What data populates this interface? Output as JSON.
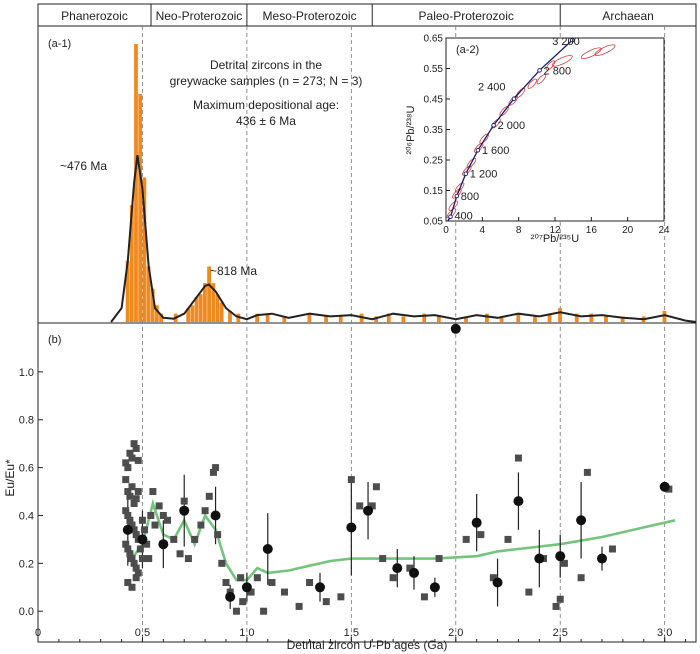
{
  "eons": [
    {
      "label": "Phanerozoic",
      "from": 0.0,
      "to": 0.541
    },
    {
      "label": "Neo-Proterozoic",
      "from": 0.541,
      "to": 1.0
    },
    {
      "label": "Meso-Proterozoic",
      "from": 1.0,
      "to": 1.6
    },
    {
      "label": "Paleo-Proterozoic",
      "from": 1.6,
      "to": 2.5
    },
    {
      "label": "Archaean",
      "from": 2.5,
      "to": 3.15
    }
  ],
  "boundaries_ga": [
    0.5,
    1.0,
    1.5,
    2.0,
    2.5,
    3.0
  ],
  "panel_a1": {
    "label": "(a-1)",
    "caption_line1": "Detrital zircons in the",
    "caption_line2": "greywacke samples (n = 273;  N = 3)",
    "caption_line3": "Maximum depositional age:",
    "caption_line4": "436 ± 6 Ma",
    "peak1_label": "~476 Ma",
    "peak2_label": "~818 Ma"
  },
  "panel_a2": {
    "label": "(a-2)",
    "xlabel": "²⁰⁷Pb/²³⁵U",
    "ylabel": "²⁰⁶Pb/²³⁸U",
    "concordia_labels": [
      "400",
      "800",
      "1 200",
      "1 600",
      "2 000",
      "2 400",
      "2 800",
      "3 200"
    ]
  },
  "panel_b": {
    "label": "(b)",
    "ylabel": "Eu/Eu*",
    "xlabel": "Detrital zircon U-Pb ages (Ga)"
  },
  "chart_data": [
    {
      "type": "bar",
      "name": "age histogram with probability density curve",
      "xlim": [
        0,
        3.15
      ],
      "bin_width": 0.02,
      "bars": [
        [
          0.43,
          0.22
        ],
        [
          0.45,
          0.42
        ],
        [
          0.47,
          1.0
        ],
        [
          0.49,
          0.82
        ],
        [
          0.51,
          0.52
        ],
        [
          0.53,
          0.2
        ],
        [
          0.55,
          0.12
        ],
        [
          0.57,
          0.06
        ],
        [
          0.59,
          0.03
        ],
        [
          0.66,
          0.03
        ],
        [
          0.72,
          0.05
        ],
        [
          0.74,
          0.06
        ],
        [
          0.76,
          0.09
        ],
        [
          0.78,
          0.1
        ],
        [
          0.8,
          0.14
        ],
        [
          0.82,
          0.2
        ],
        [
          0.84,
          0.14
        ],
        [
          0.86,
          0.1
        ],
        [
          0.88,
          0.07
        ],
        [
          0.92,
          0.04
        ],
        [
          0.96,
          0.03
        ],
        [
          1.05,
          0.03
        ],
        [
          1.1,
          0.03
        ],
        [
          1.18,
          0.02
        ],
        [
          1.3,
          0.03
        ],
        [
          1.38,
          0.02
        ],
        [
          1.45,
          0.02
        ],
        [
          1.55,
          0.03
        ],
        [
          1.62,
          0.02
        ],
        [
          1.68,
          0.03
        ],
        [
          1.75,
          0.02
        ],
        [
          1.85,
          0.03
        ],
        [
          1.92,
          0.02
        ],
        [
          2.05,
          0.02
        ],
        [
          2.15,
          0.03
        ],
        [
          2.22,
          0.02
        ],
        [
          2.3,
          0.03
        ],
        [
          2.38,
          0.02
        ],
        [
          2.45,
          0.03
        ],
        [
          2.5,
          0.05
        ],
        [
          2.58,
          0.03
        ],
        [
          2.65,
          0.03
        ],
        [
          2.72,
          0.02
        ],
        [
          2.8,
          0.02
        ],
        [
          2.9,
          0.02
        ],
        [
          3.0,
          0.04
        ]
      ],
      "pdf_curve": [
        [
          0.35,
          0.0
        ],
        [
          0.4,
          0.05
        ],
        [
          0.43,
          0.22
        ],
        [
          0.46,
          0.5
        ],
        [
          0.476,
          0.6
        ],
        [
          0.5,
          0.48
        ],
        [
          0.53,
          0.2
        ],
        [
          0.56,
          0.05
        ],
        [
          0.6,
          0.015
        ],
        [
          0.65,
          0.012
        ],
        [
          0.7,
          0.03
        ],
        [
          0.75,
          0.08
        ],
        [
          0.8,
          0.13
        ],
        [
          0.818,
          0.135
        ],
        [
          0.85,
          0.11
        ],
        [
          0.9,
          0.05
        ],
        [
          0.95,
          0.02
        ],
        [
          1.0,
          0.01
        ],
        [
          1.05,
          0.025
        ],
        [
          1.12,
          0.03
        ],
        [
          1.2,
          0.015
        ],
        [
          1.3,
          0.03
        ],
        [
          1.4,
          0.02
        ],
        [
          1.5,
          0.025
        ],
        [
          1.6,
          0.01
        ],
        [
          1.7,
          0.03
        ],
        [
          1.8,
          0.02
        ],
        [
          1.9,
          0.025
        ],
        [
          2.0,
          0.01
        ],
        [
          2.1,
          0.025
        ],
        [
          2.2,
          0.015
        ],
        [
          2.3,
          0.03
        ],
        [
          2.4,
          0.02
        ],
        [
          2.5,
          0.035
        ],
        [
          2.6,
          0.02
        ],
        [
          2.7,
          0.025
        ],
        [
          2.8,
          0.015
        ],
        [
          2.9,
          0.01
        ],
        [
          3.0,
          0.025
        ],
        [
          3.1,
          0.005
        ],
        [
          3.15,
          0.0
        ]
      ]
    },
    {
      "type": "line",
      "name": "concordia diagram",
      "xlim": [
        0,
        24
      ],
      "ylim": [
        0.05,
        0.65
      ],
      "xticks": [
        0,
        4,
        8,
        12,
        16,
        20,
        24
      ],
      "yticks": [
        0.05,
        0.15,
        0.25,
        0.35,
        0.45,
        0.55,
        0.65
      ],
      "concordia_ages_ma": [
        400,
        800,
        1200,
        1600,
        2000,
        2400,
        2800,
        3200
      ],
      "concordia_points": [
        [
          0.49,
          0.064
        ],
        [
          1.19,
          0.132
        ],
        [
          2.18,
          0.205
        ],
        [
          3.51,
          0.282
        ],
        [
          5.24,
          0.364
        ],
        [
          7.48,
          0.451
        ],
        [
          10.3,
          0.544
        ],
        [
          13.9,
          0.643
        ]
      ],
      "ellipses": [
        [
          0.6,
          0.075
        ],
        [
          0.8,
          0.1
        ],
        [
          1.2,
          0.14
        ],
        [
          1.5,
          0.16
        ],
        [
          2.3,
          0.215
        ],
        [
          2.8,
          0.24
        ],
        [
          3.6,
          0.29
        ],
        [
          4.2,
          0.32
        ],
        [
          5.5,
          0.37
        ],
        [
          6.4,
          0.41
        ],
        [
          7.4,
          0.445
        ],
        [
          8.2,
          0.47
        ],
        [
          9.5,
          0.5
        ],
        [
          10.5,
          0.515
        ],
        [
          11.5,
          0.56
        ],
        [
          12.8,
          0.575
        ],
        [
          16.0,
          0.6
        ],
        [
          17.5,
          0.61
        ]
      ]
    },
    {
      "type": "scatter",
      "name": "Eu/Eu* versus age",
      "xlim": [
        0,
        3.15
      ],
      "ylim": [
        -0.02,
        1.2
      ],
      "xticks": [
        0,
        0.5,
        1.0,
        1.5,
        2.0,
        2.5,
        3.0
      ],
      "xtick_labels": [
        "0",
        "0.5",
        "1.0",
        "1.5",
        "2.0",
        "2.5",
        "3.0"
      ],
      "yticks": [
        0.0,
        0.2,
        0.4,
        0.6,
        0.8,
        1.0
      ],
      "ytick_labels": [
        "0.0",
        "0.2",
        "0.4",
        "0.6",
        "0.8",
        "1.0"
      ],
      "squares": [
        [
          0.42,
          0.62
        ],
        [
          0.43,
          0.6
        ],
        [
          0.44,
          0.66
        ],
        [
          0.45,
          0.64
        ],
        [
          0.46,
          0.7
        ],
        [
          0.47,
          0.68
        ],
        [
          0.48,
          0.63
        ],
        [
          0.42,
          0.55
        ],
        [
          0.43,
          0.5
        ],
        [
          0.44,
          0.48
        ],
        [
          0.45,
          0.52
        ],
        [
          0.46,
          0.45
        ],
        [
          0.47,
          0.47
        ],
        [
          0.48,
          0.5
        ],
        [
          0.42,
          0.42
        ],
        [
          0.43,
          0.4
        ],
        [
          0.44,
          0.38
        ],
        [
          0.45,
          0.36
        ],
        [
          0.46,
          0.34
        ],
        [
          0.47,
          0.32
        ],
        [
          0.48,
          0.3
        ],
        [
          0.42,
          0.28
        ],
        [
          0.43,
          0.26
        ],
        [
          0.44,
          0.24
        ],
        [
          0.45,
          0.22
        ],
        [
          0.46,
          0.2
        ],
        [
          0.47,
          0.18
        ],
        [
          0.48,
          0.16
        ],
        [
          0.43,
          0.12
        ],
        [
          0.45,
          0.1
        ],
        [
          0.47,
          0.14
        ],
        [
          0.49,
          0.26
        ],
        [
          0.5,
          0.22
        ],
        [
          0.5,
          0.38
        ],
        [
          0.51,
          0.34
        ],
        [
          0.52,
          0.28
        ],
        [
          0.53,
          0.22
        ],
        [
          0.54,
          0.4
        ],
        [
          0.55,
          0.5
        ],
        [
          0.56,
          0.36
        ],
        [
          0.58,
          0.44
        ],
        [
          0.6,
          0.4
        ],
        [
          0.62,
          0.38
        ],
        [
          0.65,
          0.3
        ],
        [
          0.68,
          0.24
        ],
        [
          0.7,
          0.46
        ],
        [
          0.72,
          0.22
        ],
        [
          0.75,
          0.3
        ],
        [
          0.78,
          0.36
        ],
        [
          0.8,
          0.42
        ],
        [
          0.82,
          0.48
        ],
        [
          0.84,
          0.58
        ],
        [
          0.85,
          0.6
        ],
        [
          0.86,
          0.32
        ],
        [
          0.88,
          0.2
        ],
        [
          0.9,
          0.12
        ],
        [
          0.92,
          0.08
        ],
        [
          0.95,
          0.0
        ],
        [
          0.97,
          0.14
        ],
        [
          0.98,
          0.04
        ],
        [
          1.02,
          0.08
        ],
        [
          1.05,
          0.14
        ],
        [
          1.08,
          0.0
        ],
        [
          1.12,
          0.12
        ],
        [
          1.18,
          0.08
        ],
        [
          1.25,
          0.02
        ],
        [
          1.3,
          0.12
        ],
        [
          1.38,
          0.04
        ],
        [
          1.45,
          0.06
        ],
        [
          1.5,
          0.55
        ],
        [
          1.54,
          0.44
        ],
        [
          1.6,
          0.44
        ],
        [
          1.62,
          0.52
        ],
        [
          1.65,
          0.22
        ],
        [
          1.7,
          0.14
        ],
        [
          1.78,
          0.18
        ],
        [
          1.85,
          0.06
        ],
        [
          1.9,
          0.1
        ],
        [
          1.92,
          0.22
        ],
        [
          2.05,
          0.3
        ],
        [
          2.12,
          0.32
        ],
        [
          2.18,
          0.14
        ],
        [
          2.25,
          0.3
        ],
        [
          2.3,
          0.64
        ],
        [
          2.35,
          0.08
        ],
        [
          2.42,
          0.22
        ],
        [
          2.48,
          0.02
        ],
        [
          2.5,
          0.05
        ],
        [
          2.52,
          0.2
        ],
        [
          2.6,
          0.14
        ],
        [
          2.63,
          0.58
        ],
        [
          2.7,
          0.22
        ],
        [
          2.75,
          0.26
        ],
        [
          3.02,
          0.51
        ]
      ],
      "circles": [
        [
          0.43,
          0.34,
          0.15
        ],
        [
          0.5,
          0.3,
          0.12
        ],
        [
          0.6,
          0.28,
          0.1
        ],
        [
          0.7,
          0.42,
          0.15
        ],
        [
          0.85,
          0.4,
          0.12
        ],
        [
          0.92,
          0.06,
          0.05
        ],
        [
          1.0,
          0.1,
          0.06
        ],
        [
          1.1,
          0.26,
          0.15
        ],
        [
          1.35,
          0.1,
          0.06
        ],
        [
          1.5,
          0.35,
          0.2
        ],
        [
          1.58,
          0.42,
          0.12
        ],
        [
          1.72,
          0.18,
          0.08
        ],
        [
          1.8,
          0.16,
          0.07
        ],
        [
          1.9,
          0.1,
          0.04
        ],
        [
          2.0,
          1.18,
          0.0
        ],
        [
          2.1,
          0.37,
          0.12
        ],
        [
          2.2,
          0.12,
          0.1
        ],
        [
          2.3,
          0.46,
          0.12
        ],
        [
          2.4,
          0.22,
          0.12
        ],
        [
          2.5,
          0.23,
          0.09
        ],
        [
          2.6,
          0.38,
          0.16
        ],
        [
          2.7,
          0.22,
          0.05
        ],
        [
          3.0,
          0.52,
          0.0
        ]
      ],
      "trend": [
        [
          0.42,
          0.28
        ],
        [
          0.45,
          0.22
        ],
        [
          0.5,
          0.28
        ],
        [
          0.55,
          0.45
        ],
        [
          0.6,
          0.32
        ],
        [
          0.65,
          0.3
        ],
        [
          0.7,
          0.38
        ],
        [
          0.75,
          0.28
        ],
        [
          0.8,
          0.4
        ],
        [
          0.85,
          0.34
        ],
        [
          0.9,
          0.2
        ],
        [
          0.95,
          0.13
        ],
        [
          1.0,
          0.13
        ],
        [
          1.05,
          0.18
        ],
        [
          1.1,
          0.16
        ],
        [
          1.2,
          0.17
        ],
        [
          1.3,
          0.19
        ],
        [
          1.4,
          0.21
        ],
        [
          1.5,
          0.22
        ],
        [
          1.7,
          0.22
        ],
        [
          1.9,
          0.22
        ],
        [
          2.1,
          0.23
        ],
        [
          2.2,
          0.25
        ],
        [
          2.3,
          0.26
        ],
        [
          2.5,
          0.28
        ],
        [
          2.7,
          0.31
        ],
        [
          2.9,
          0.35
        ],
        [
          3.05,
          0.38
        ]
      ]
    }
  ]
}
